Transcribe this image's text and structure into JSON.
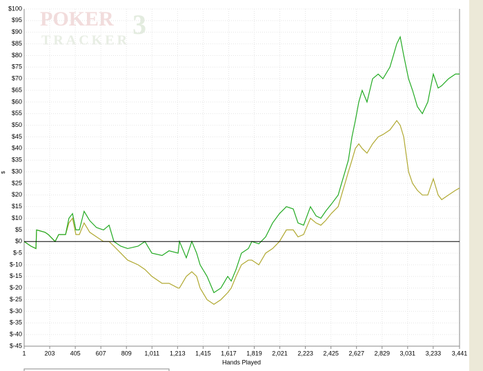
{
  "chart_data": {
    "type": "line",
    "watermark": [
      "POKER",
      "3",
      "TRACKER"
    ],
    "x_label": "Hands Played",
    "y_label": "$",
    "xlim": [
      1,
      3441
    ],
    "ylim": [
      -45,
      100
    ],
    "grid": true,
    "xticks": [
      1,
      203,
      405,
      607,
      809,
      {
        "value": 1011,
        "label": "1,011"
      },
      {
        "value": 1213,
        "label": "1,213"
      },
      {
        "value": 1415,
        "label": "1,415"
      },
      {
        "value": 1617,
        "label": "1,617"
      },
      {
        "value": 1819,
        "label": "1,819"
      },
      {
        "value": 2021,
        "label": "2,021"
      },
      {
        "value": 2223,
        "label": "2,223"
      },
      {
        "value": 2425,
        "label": "2,425"
      },
      {
        "value": 2627,
        "label": "2,627"
      },
      {
        "value": 2829,
        "label": "2,829"
      },
      {
        "value": 3031,
        "label": "3,031"
      },
      {
        "value": 3233,
        "label": "3,233"
      },
      {
        "value": 3441,
        "label": "3,441"
      }
    ],
    "yticks": [
      {
        "value": 100,
        "label": "$100"
      },
      {
        "value": 95,
        "label": "$95"
      },
      {
        "value": 90,
        "label": "$90"
      },
      {
        "value": 85,
        "label": "$85"
      },
      {
        "value": 80,
        "label": "$80"
      },
      {
        "value": 75,
        "label": "$75"
      },
      {
        "value": 70,
        "label": "$70"
      },
      {
        "value": 65,
        "label": "$65"
      },
      {
        "value": 60,
        "label": "$60"
      },
      {
        "value": 55,
        "label": "$55"
      },
      {
        "value": 50,
        "label": "$50"
      },
      {
        "value": 45,
        "label": "$45"
      },
      {
        "value": 40,
        "label": "$40"
      },
      {
        "value": 35,
        "label": "$35"
      },
      {
        "value": 30,
        "label": "$30"
      },
      {
        "value": 25,
        "label": "$25"
      },
      {
        "value": 20,
        "label": "$20"
      },
      {
        "value": 15,
        "label": "$15"
      },
      {
        "value": 10,
        "label": "$10"
      },
      {
        "value": 5,
        "label": "$5"
      },
      {
        "value": 0,
        "label": "$0"
      },
      {
        "value": -5,
        "label": "$-5"
      },
      {
        "value": -10,
        "label": "$-10"
      },
      {
        "value": -15,
        "label": "$-15"
      },
      {
        "value": -20,
        "label": "$-20"
      },
      {
        "value": -25,
        "label": "$-25"
      },
      {
        "value": -30,
        "label": "$-30"
      },
      {
        "value": -35,
        "label": "$-35"
      },
      {
        "value": -40,
        "label": "$-40"
      },
      {
        "value": -45,
        "label": "$-45"
      }
    ],
    "x": [
      1,
      55,
      94,
      99,
      165,
      192,
      246,
      274,
      328,
      355,
      383,
      410,
      437,
      475,
      519,
      573,
      628,
      672,
      710,
      764,
      819,
      901,
      955,
      1010,
      1091,
      1146,
      1217,
      1228,
      1282,
      1326,
      1364,
      1391,
      1446,
      1500,
      1555,
      1609,
      1637,
      1675,
      1718,
      1773,
      1800,
      1855,
      1909,
      1964,
      2018,
      2073,
      2127,
      2165,
      2209,
      2263,
      2307,
      2345,
      2383,
      2427,
      2482,
      2509,
      2536,
      2563,
      2591,
      2618,
      2645,
      2672,
      2710,
      2754,
      2798,
      2836,
      2891,
      2918,
      2945,
      2972,
      3000,
      3038,
      3070,
      3108,
      3147,
      3190,
      3234,
      3272,
      3300,
      3354,
      3409,
      3441
    ],
    "series": [
      {
        "color": "#22aa22",
        "values": [
          0,
          -2,
          -3,
          5,
          4,
          3,
          0,
          3,
          3,
          10,
          12,
          5,
          5,
          13,
          9,
          6,
          5,
          7,
          0,
          -2,
          -3,
          -2,
          0,
          -5,
          -6,
          -4,
          -5,
          0,
          -7,
          0,
          -5,
          -10,
          -15,
          -22,
          -20,
          -15,
          -17,
          -12,
          -5,
          -3,
          0,
          -1,
          2,
          8,
          12,
          15,
          14,
          8,
          7,
          15,
          11,
          10,
          13,
          16,
          20,
          25,
          30,
          35,
          45,
          52,
          60,
          65,
          60,
          70,
          72,
          70,
          75,
          80,
          85,
          88,
          80,
          70,
          65,
          58,
          55,
          60,
          72,
          66,
          67,
          70,
          72,
          72
        ]
      },
      {
        "color": "#b0a830",
        "values": [
          0,
          -2,
          -3,
          5,
          4,
          3,
          0,
          3,
          3,
          8,
          10,
          3,
          3,
          8,
          4,
          2,
          0,
          0,
          -2,
          -5,
          -8,
          -10,
          -12,
          -15,
          -18,
          -18,
          -20,
          -20,
          -15,
          -13,
          -15,
          -20,
          -25,
          -27,
          -25,
          -22,
          -20,
          -15,
          -10,
          -8,
          -8,
          -10,
          -5,
          -3,
          0,
          5,
          5,
          2,
          3,
          10,
          8,
          7,
          9,
          12,
          15,
          20,
          25,
          30,
          35,
          40,
          42,
          40,
          38,
          42,
          45,
          46,
          48,
          50,
          52,
          50,
          45,
          30,
          25,
          22,
          20,
          20,
          27,
          20,
          18,
          20,
          22,
          23
        ]
      }
    ]
  }
}
